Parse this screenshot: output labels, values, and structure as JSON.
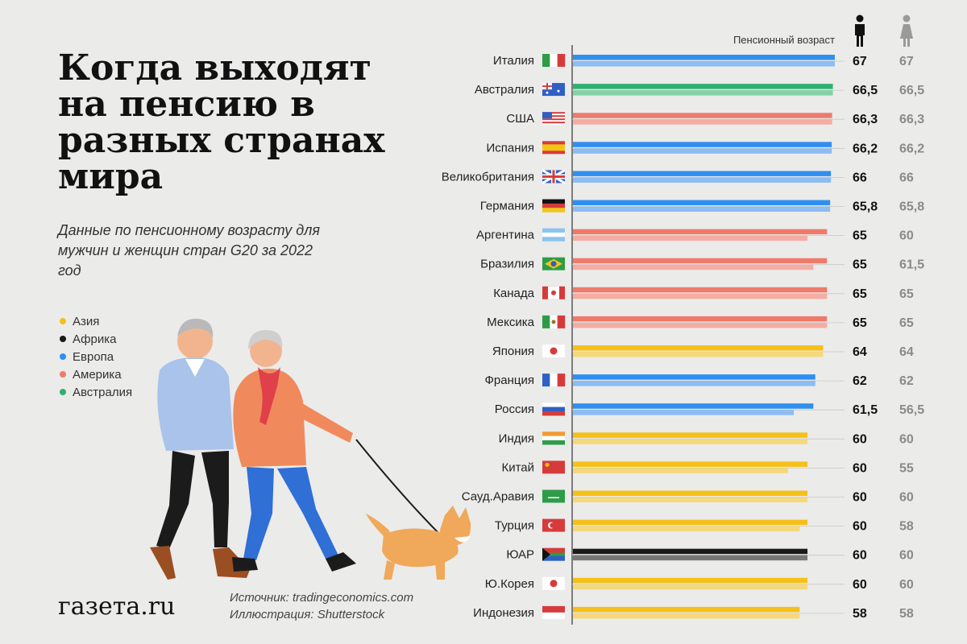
{
  "title": "Когда выходят на пенсию в разных странах мира",
  "subtitle": "Данные по пенсионному возрасту для мужчин и женщин стран G20 за 2022 год",
  "legend": [
    {
      "label": "Азия",
      "color": "#f5c017"
    },
    {
      "label": "Африка",
      "color": "#1a1a1a"
    },
    {
      "label": "Европа",
      "color": "#2f8ff0"
    },
    {
      "label": "Америка",
      "color": "#f07a6a"
    },
    {
      "label": "Австралия",
      "color": "#2fb070"
    }
  ],
  "header": {
    "label": "Пенсионный возраст",
    "male_icon": "man-icon",
    "female_icon": "woman-icon"
  },
  "logo": "газета.ru",
  "source_lines": [
    "Источник: tradingeconomics.com",
    "Иллюстрация: Shutterstock"
  ],
  "chart_data": {
    "type": "bar",
    "orientation": "horizontal",
    "series": [
      {
        "name": "мужчины",
        "values": [
          67,
          66.5,
          66.3,
          66.2,
          66,
          65.8,
          65,
          65,
          65,
          65,
          64,
          62,
          61.5,
          60,
          60,
          60,
          60,
          60,
          60,
          58
        ]
      },
      {
        "name": "женщины",
        "values": [
          67,
          66.5,
          66.3,
          66.2,
          66,
          65.8,
          60,
          61.5,
          65,
          65,
          64,
          62,
          56.5,
          60,
          55,
          60,
          58,
          60,
          60,
          58
        ]
      }
    ],
    "value_labels": {
      "male": [
        "67",
        "66,5",
        "66,3",
        "66,2",
        "66",
        "65,8",
        "65",
        "65",
        "65",
        "65",
        "64",
        "62",
        "61,5",
        "60",
        "60",
        "60",
        "60",
        "60",
        "60",
        "58"
      ],
      "female": [
        "67",
        "66,5",
        "66,3",
        "66,2",
        "66",
        "65,8",
        "60",
        "61,5",
        "65",
        "65",
        "64",
        "62",
        "56,5",
        "60",
        "55",
        "60",
        "58",
        "60",
        "60",
        "58"
      ]
    },
    "categories": [
      "Италия",
      "Австралия",
      "США",
      "Испания",
      "Великобритания",
      "Германия",
      "Аргентина",
      "Бразилия",
      "Канада",
      "Мексика",
      "Япония",
      "Франция",
      "Россия",
      "Индия",
      "Китай",
      "Сауд.Аравия",
      "Турция",
      "ЮАР",
      "Ю.Корея",
      "Индонезия"
    ],
    "regions": [
      "Европа",
      "Австралия",
      "Америка",
      "Европа",
      "Европа",
      "Европа",
      "Америка",
      "Америка",
      "Америка",
      "Америка",
      "Азия",
      "Европа",
      "Европа",
      "Азия",
      "Азия",
      "Азия",
      "Азия",
      "Африка",
      "Азия",
      "Азия"
    ],
    "flag_icons": [
      "italy-flag-icon",
      "australia-flag-icon",
      "usa-flag-icon",
      "spain-flag-icon",
      "uk-flag-icon",
      "germany-flag-icon",
      "argentina-flag-icon",
      "brazil-flag-icon",
      "canada-flag-icon",
      "mexico-flag-icon",
      "japan-flag-icon",
      "france-flag-icon",
      "russia-flag-icon",
      "india-flag-icon",
      "china-flag-icon",
      "saudi-arabia-flag-icon",
      "turkey-flag-icon",
      "south-africa-flag-icon",
      "south-korea-flag-icon",
      "indonesia-flag-icon"
    ],
    "region_colors": {
      "Азия": [
        "#f5c017",
        "#f5d87a"
      ],
      "Африка": [
        "#1a1a1a",
        "#777777"
      ],
      "Европа": [
        "#2f8ff0",
        "#8cbcf2"
      ],
      "Америка": [
        "#f07a6a",
        "#f5aca2"
      ],
      "Австралия": [
        "#2fb070",
        "#84d2a6"
      ]
    },
    "xlim": [
      0,
      67
    ]
  }
}
